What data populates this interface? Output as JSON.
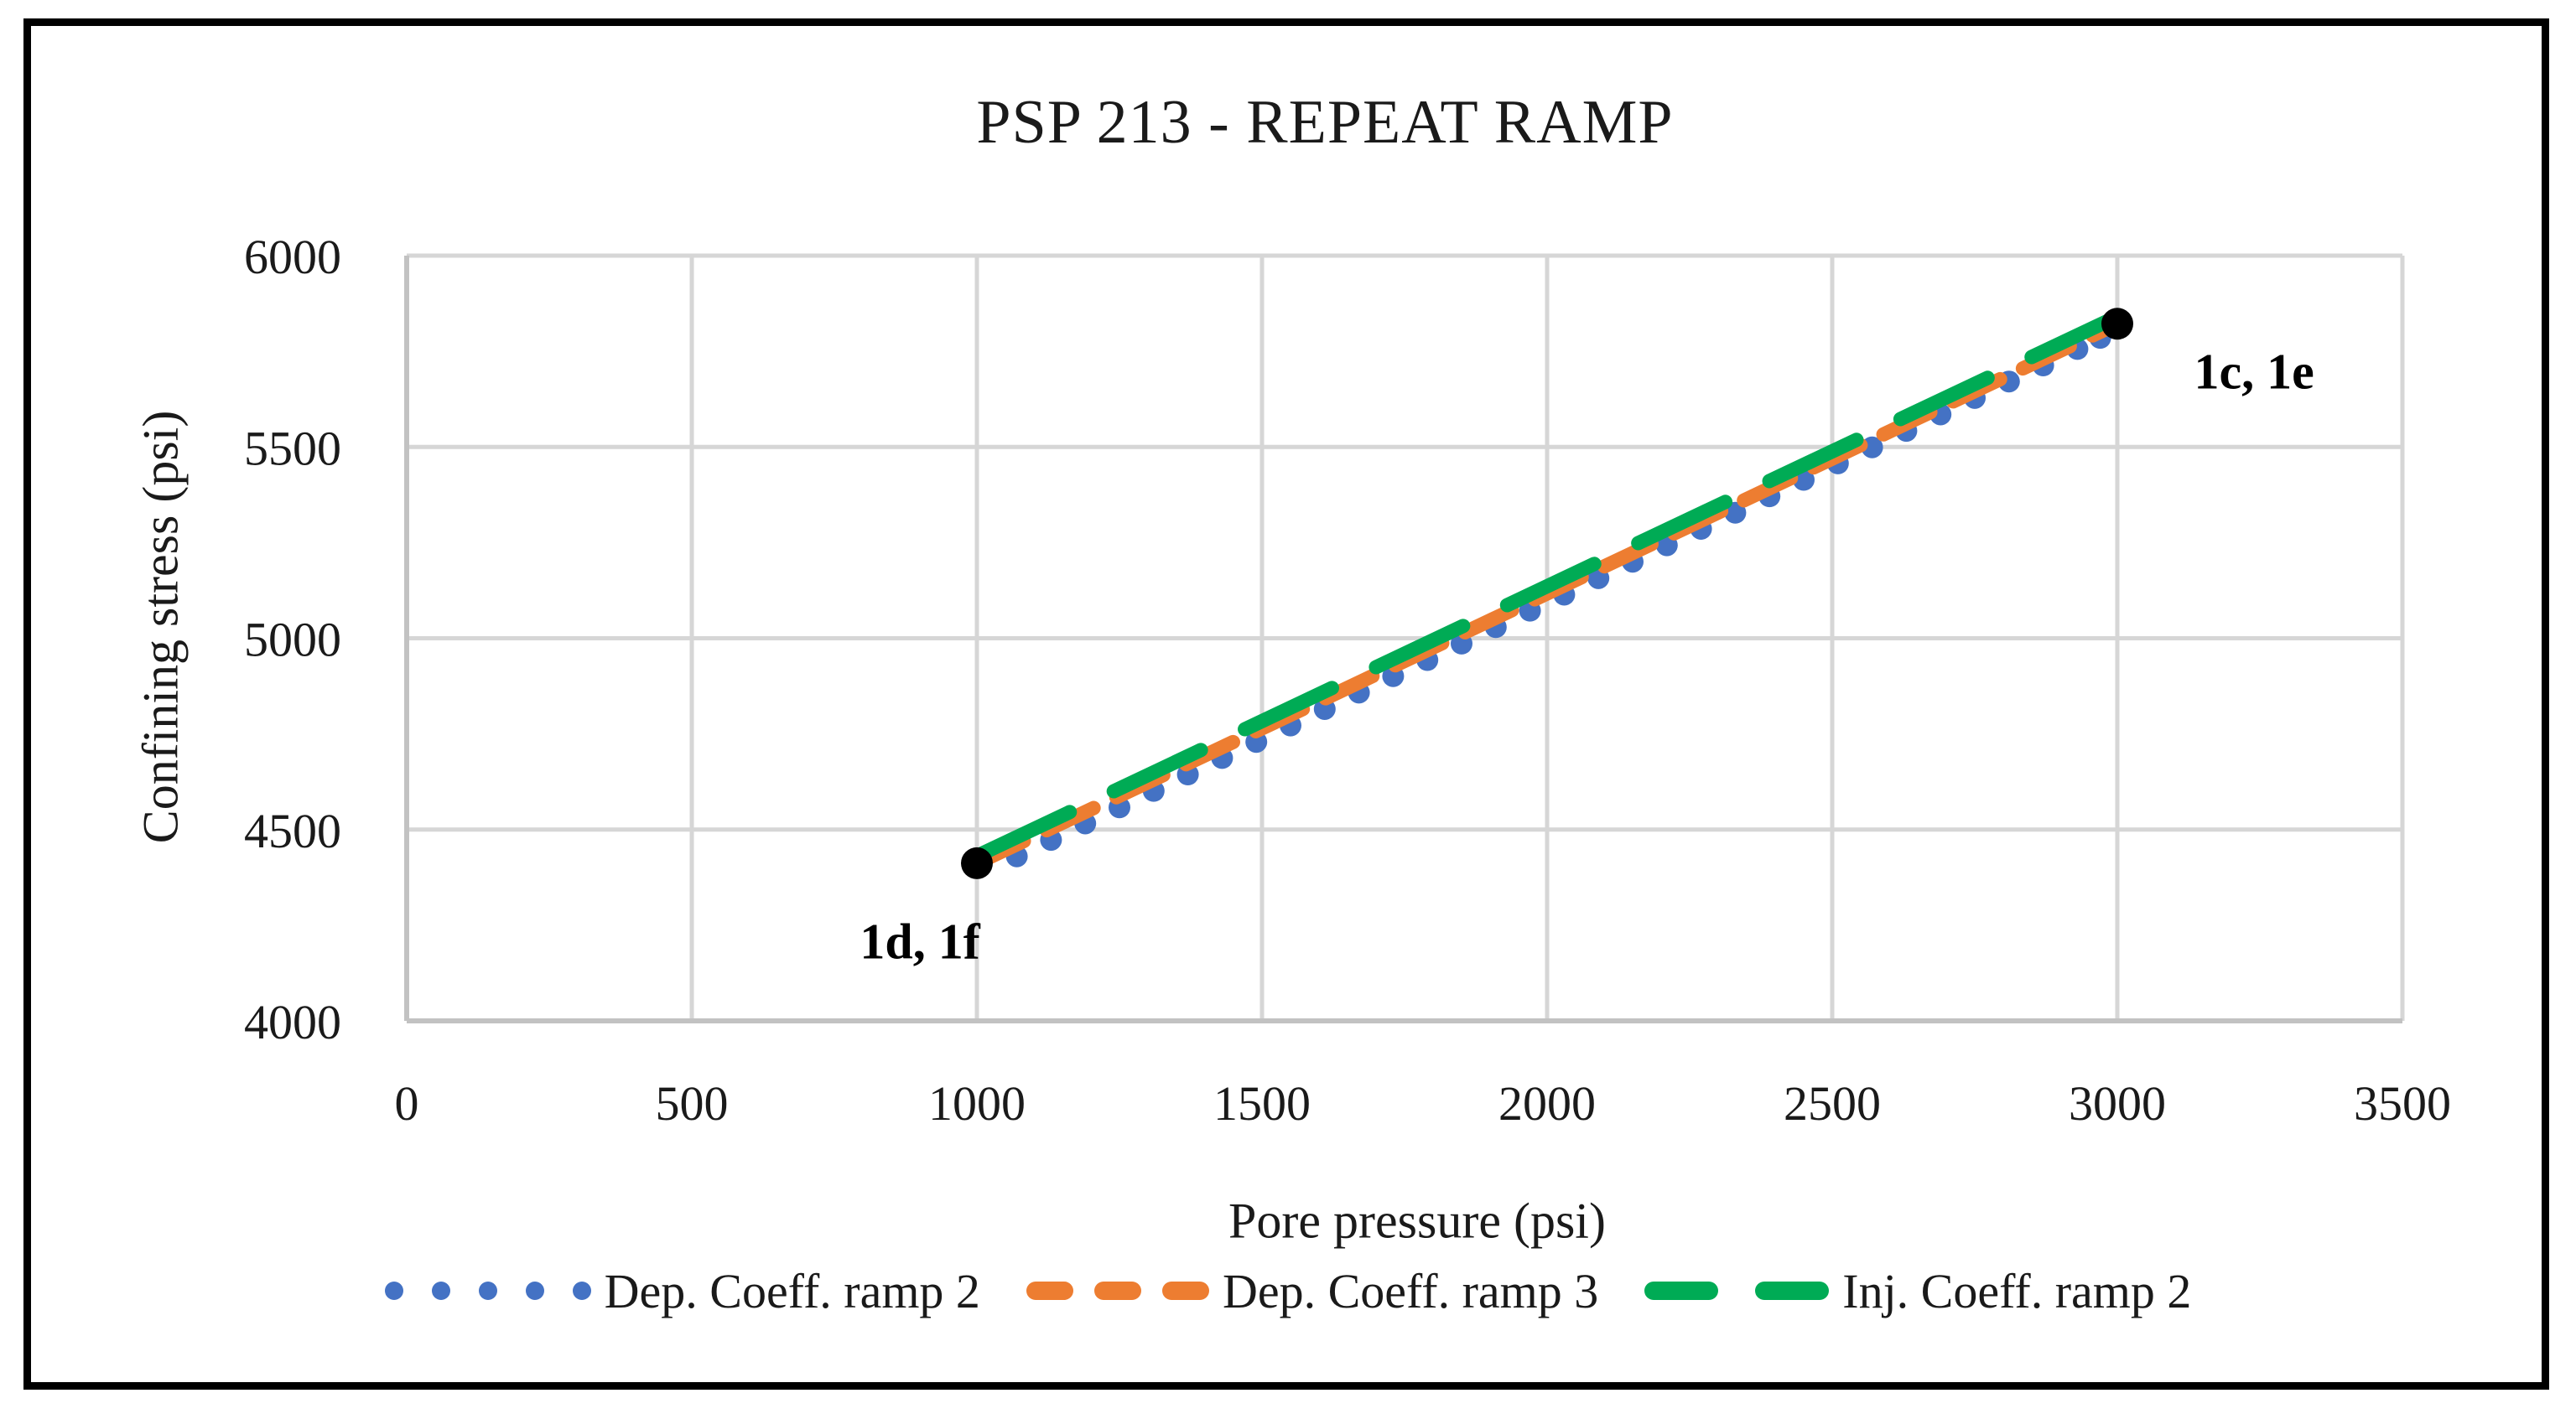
{
  "chart_data": {
    "type": "scatter",
    "title": "PSP 213 - REPEAT RAMP",
    "xlabel": "Pore pressure (psi)",
    "ylabel": "Confining stress (psi)",
    "xlim": [
      0,
      3500
    ],
    "ylim": [
      4000,
      6000
    ],
    "x_ticks": [
      0,
      500,
      1000,
      1500,
      2000,
      2500,
      3000,
      3500
    ],
    "y_ticks": [
      4000,
      4500,
      5000,
      5500,
      6000
    ],
    "grid": true,
    "legend_position": "bottom",
    "series": [
      {
        "name": "Dep. Coeff. ramp 2",
        "type": "scatter-dots",
        "color": "#4472C4",
        "points": [
          [
            1070,
            4430
          ],
          [
            1130,
            4473
          ],
          [
            1190,
            4516
          ],
          [
            1250,
            4558
          ],
          [
            1310,
            4601
          ],
          [
            1370,
            4644
          ],
          [
            1430,
            4687
          ],
          [
            1490,
            4729
          ],
          [
            1550,
            4772
          ],
          [
            1610,
            4815
          ],
          [
            1670,
            4858
          ],
          [
            1730,
            4901
          ],
          [
            1790,
            4943
          ],
          [
            1850,
            4986
          ],
          [
            1910,
            5029
          ],
          [
            1970,
            5072
          ],
          [
            2030,
            5114
          ],
          [
            2090,
            5157
          ],
          [
            2150,
            5200
          ],
          [
            2210,
            5243
          ],
          [
            2270,
            5286
          ],
          [
            2330,
            5328
          ],
          [
            2390,
            5371
          ],
          [
            2450,
            5414
          ],
          [
            2510,
            5457
          ],
          [
            2570,
            5499
          ],
          [
            2630,
            5542
          ],
          [
            2690,
            5585
          ],
          [
            2750,
            5628
          ],
          [
            2810,
            5671
          ],
          [
            2870,
            5713
          ],
          [
            2930,
            5756
          ],
          [
            2970,
            5785
          ]
        ]
      },
      {
        "name": "Dep. Coeff. ramp 3",
        "type": "dashed-line",
        "color": "#ED7D31",
        "points": [
          [
            1000,
            4412
          ],
          [
            3000,
            5822
          ]
        ]
      },
      {
        "name": "Inj. Coeff. ramp 2",
        "type": "long-dashed-line",
        "color": "#00AB55",
        "points": [
          [
            1010,
            4438
          ],
          [
            2990,
            5834
          ]
        ]
      }
    ],
    "endpoint_markers": {
      "color": "#000000",
      "points": [
        [
          1000,
          4412
        ],
        [
          3000,
          5822
        ]
      ]
    },
    "annotations": [
      {
        "text": "1d, 1f",
        "x": 900,
        "y": 4205
      },
      {
        "text": "1c, 1e",
        "x": 3240,
        "y": 5695
      }
    ],
    "colors": {
      "text": "#1A1A1A",
      "grid": "#D6D6D6",
      "axis": "#C2C2C2",
      "border": "#000000",
      "background": "#FFFFFF"
    }
  }
}
